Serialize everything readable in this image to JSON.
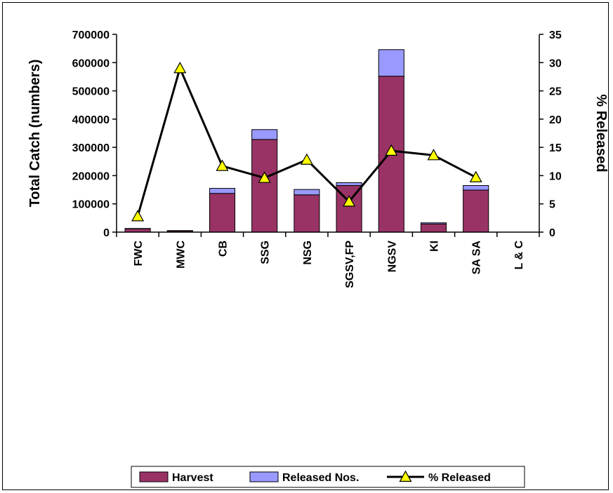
{
  "chart_data": {
    "type": "bar",
    "stacked": true,
    "title": "",
    "categories": [
      "FWC",
      "MWC",
      "CB",
      "SSG",
      "NSG",
      "SGSV,FP",
      "NGSV",
      "KI",
      "SA SA",
      "L & C"
    ],
    "series": [
      {
        "name": "Harvest",
        "type": "bar",
        "axis": "left",
        "color": "#993366",
        "values": [
          12000,
          4000,
          137000,
          328000,
          132000,
          165000,
          552000,
          29000,
          149000,
          0
        ]
      },
      {
        "name": "Released Nos.",
        "type": "bar",
        "axis": "left",
        "color": "#9999FF",
        "values": [
          1000,
          1500,
          18000,
          35000,
          19000,
          10000,
          94000,
          4000,
          16000,
          0
        ]
      },
      {
        "name": "% Released",
        "type": "line",
        "axis": "right",
        "color": "#000000",
        "marker_color": "#FFFF00",
        "values": [
          2.8,
          29.0,
          11.7,
          9.6,
          12.8,
          5.4,
          14.4,
          13.6,
          9.7,
          null
        ]
      }
    ],
    "ylabel": "Total Catch (numbers)",
    "y2label": "% Released",
    "ylim": [
      0,
      700000
    ],
    "y2lim": [
      0,
      35
    ],
    "yticks": [
      "0",
      "100000",
      "200000",
      "300000",
      "400000",
      "500000",
      "600000",
      "700000"
    ],
    "y2ticks": [
      "0",
      "5",
      "10",
      "15",
      "20",
      "25",
      "30",
      "35"
    ],
    "grid": false,
    "legend_position": "bottom"
  }
}
